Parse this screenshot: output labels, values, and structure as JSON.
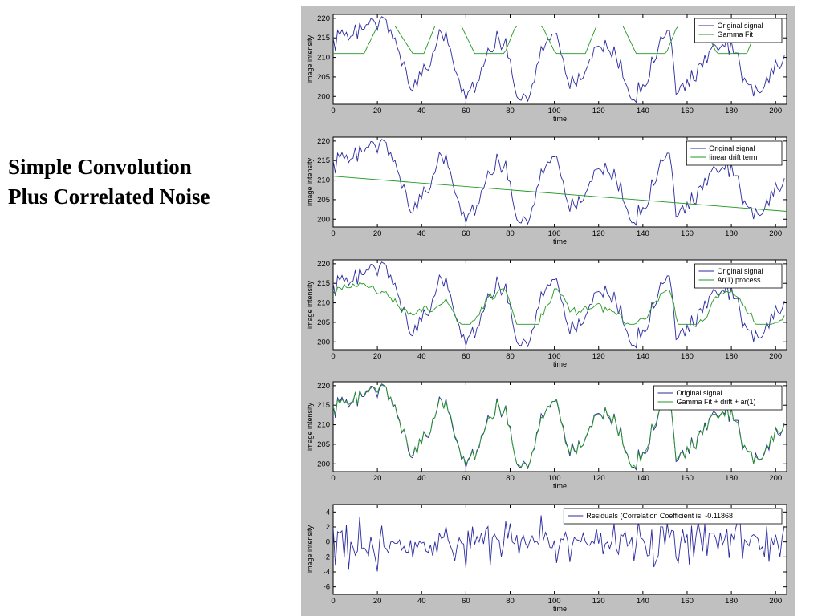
{
  "slide": {
    "title_line1": "Simple Convolution",
    "title_line2": "Plus Correlated Noise"
  },
  "colors": {
    "blue": "#2a2aa0",
    "green": "#229922",
    "figure_bg": "#c0c0c0",
    "axes_bg": "#ffffff"
  },
  "chart_data": [
    {
      "type": "line",
      "xlabel": "time",
      "ylabel": "image intensity",
      "xlim": [
        0,
        205
      ],
      "ylim": [
        198,
        221
      ],
      "xticks": [
        0,
        20,
        40,
        60,
        80,
        100,
        120,
        140,
        160,
        180,
        200
      ],
      "yticks": [
        200,
        205,
        210,
        215,
        220
      ],
      "legend": "top-right",
      "series": [
        {
          "name": "Original signal",
          "color": "#2a2aa0",
          "source": "original"
        },
        {
          "name": "Gamma Fit",
          "color": "#229922",
          "source": "gamma"
        }
      ]
    },
    {
      "type": "line",
      "xlabel": "time",
      "ylabel": "image intensity",
      "xlim": [
        0,
        205
      ],
      "ylim": [
        198,
        221
      ],
      "xticks": [
        0,
        20,
        40,
        60,
        80,
        100,
        120,
        140,
        160,
        180,
        200
      ],
      "yticks": [
        200,
        205,
        210,
        215,
        220
      ],
      "legend": "top-right",
      "series": [
        {
          "name": "Original signal",
          "color": "#2a2aa0",
          "source": "original"
        },
        {
          "name": "linear drift term",
          "color": "#229922",
          "source": "drift",
          "line": [
            [
              0,
              211
            ],
            [
              205,
              202
            ]
          ]
        }
      ]
    },
    {
      "type": "line",
      "xlabel": "time",
      "ylabel": "image intensity",
      "xlim": [
        0,
        205
      ],
      "ylim": [
        198,
        221
      ],
      "xticks": [
        0,
        20,
        40,
        60,
        80,
        100,
        120,
        140,
        160,
        180,
        200
      ],
      "yticks": [
        200,
        205,
        210,
        215,
        220
      ],
      "legend": "top-right",
      "series": [
        {
          "name": "Original signal",
          "color": "#2a2aa0",
          "source": "original"
        },
        {
          "name": "Ar(1) process",
          "color": "#229922",
          "source": "ar1"
        }
      ]
    },
    {
      "type": "line",
      "xlabel": "time",
      "ylabel": "image intensity",
      "xlim": [
        0,
        205
      ],
      "ylim": [
        198,
        221
      ],
      "xticks": [
        0,
        20,
        40,
        60,
        80,
        100,
        120,
        140,
        160,
        180,
        200
      ],
      "yticks": [
        200,
        205,
        210,
        215,
        220
      ],
      "legend": "top-right",
      "series": [
        {
          "name": "Original signal",
          "color": "#2a2aa0",
          "source": "original"
        },
        {
          "name": "Gamma Fit + drift + ar(1)",
          "color": "#229922",
          "source": "fit"
        }
      ]
    },
    {
      "type": "line",
      "xlabel": "time",
      "ylabel": "image intensity",
      "xlim": [
        0,
        205
      ],
      "ylim": [
        -7,
        5
      ],
      "xticks": [
        0,
        20,
        40,
        60,
        80,
        100,
        120,
        140,
        160,
        180,
        200
      ],
      "yticks": [
        -6,
        -4,
        -2,
        0,
        2,
        4
      ],
      "legend": "top-right",
      "series": [
        {
          "name": "Residuals (Correlation Coefficient is: -0.11868",
          "color": "#2a2aa0",
          "source": "residuals"
        }
      ]
    }
  ],
  "signal_model": {
    "n_points": 205,
    "period": 36.5,
    "gamma_min": 211,
    "gamma_max": 218,
    "drift_start": 211,
    "drift_end": 202,
    "main_troughs": [
      {
        "x": 37,
        "y": 203
      },
      {
        "x": 60,
        "y": 201
      },
      {
        "x": 85,
        "y": 199
      },
      {
        "x": 107,
        "y": 203
      },
      {
        "x": 136,
        "y": 200
      },
      {
        "x": 155,
        "y": 202
      },
      {
        "x": 190,
        "y": 201
      }
    ],
    "main_peaks": [
      {
        "x": 4,
        "y": 216
      },
      {
        "x": 22,
        "y": 220
      },
      {
        "x": 50,
        "y": 216
      },
      {
        "x": 76,
        "y": 214
      },
      {
        "x": 100,
        "y": 216
      },
      {
        "x": 124,
        "y": 213
      },
      {
        "x": 152,
        "y": 216
      },
      {
        "x": 178,
        "y": 213
      }
    ]
  }
}
